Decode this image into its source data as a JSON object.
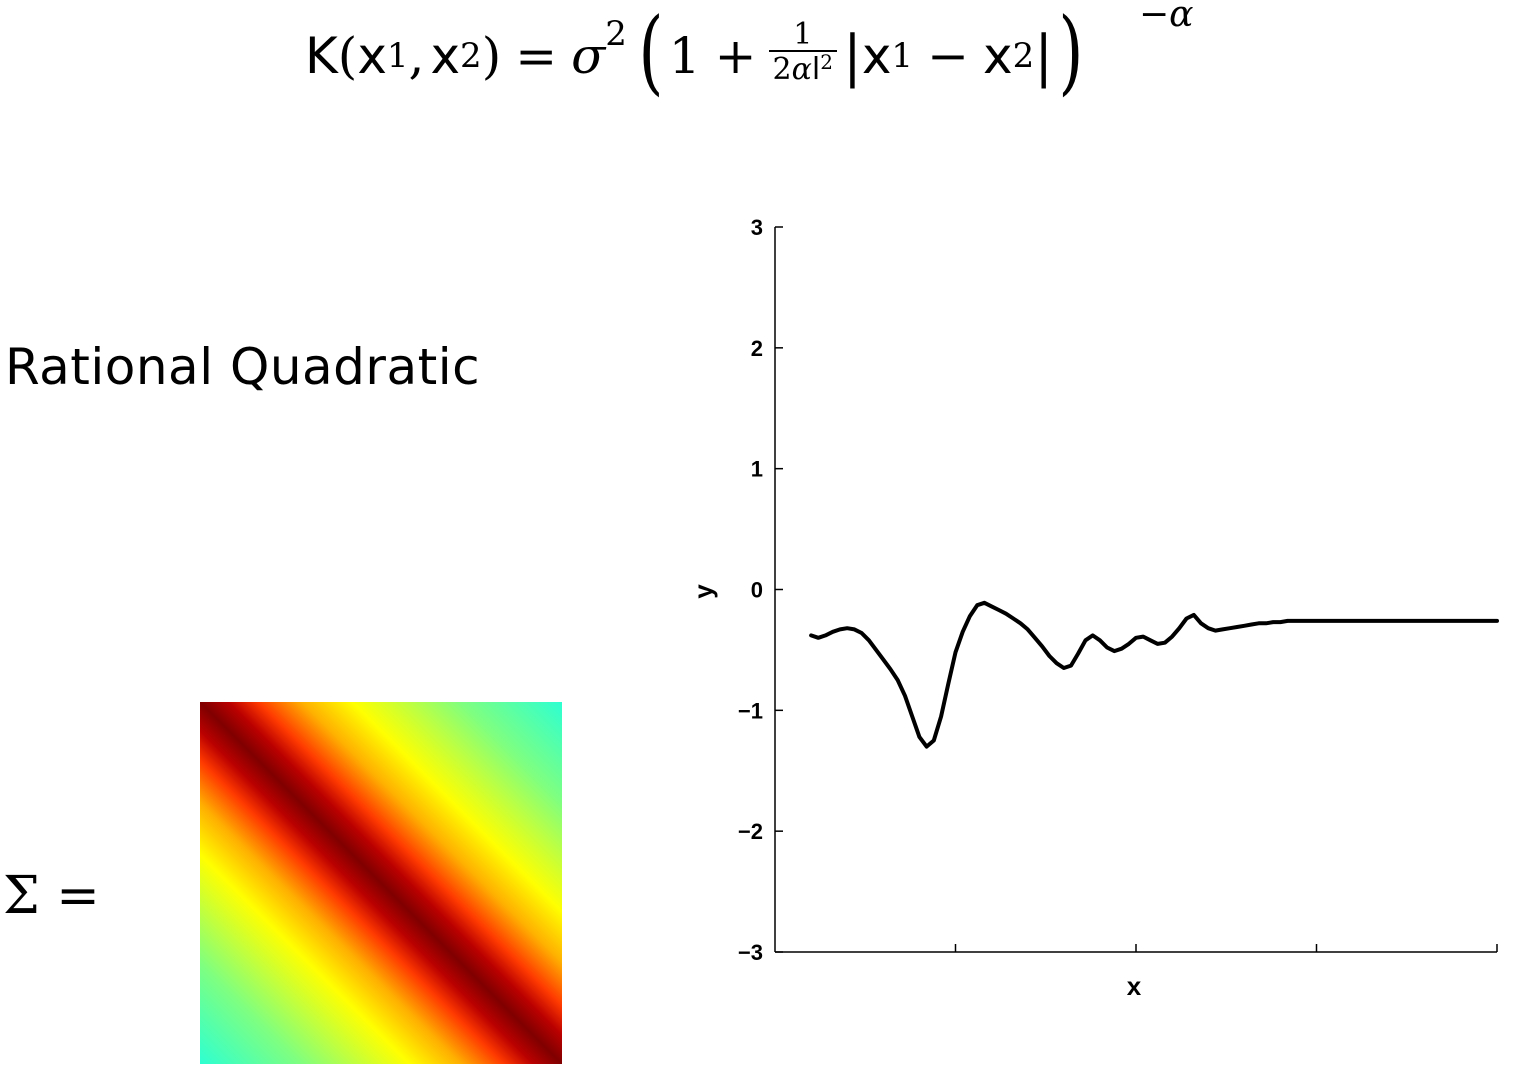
{
  "formula": {
    "lhs_fn": "K",
    "var": "x",
    "sub1": "1",
    "sub2": "2",
    "comma": ",",
    "equals": "=",
    "sigma": "σ",
    "sigma_exp": "2",
    "one": "1",
    "plus": "+",
    "frac_num": "1",
    "frac_den_coef": "2",
    "frac_den_alpha": "α",
    "frac_den_l": "l",
    "frac_den_exp": "2",
    "minus": "−",
    "exponent": "−α"
  },
  "kernel_name": "Rational Quadratic",
  "sigma_label": "Σ =",
  "chart_data": {
    "type": "line",
    "xlabel": "x",
    "ylabel": "y",
    "ylim": [
      -3,
      3
    ],
    "xlim": [
      0,
      1
    ],
    "yticks": [
      "−3",
      "−2",
      "−1",
      "0",
      "1",
      "2",
      "3"
    ],
    "ytick_values": [
      -3,
      -2,
      -1,
      0,
      1,
      2,
      3
    ],
    "xticks": [
      0.25,
      0.5,
      0.75,
      1.0
    ],
    "xtick_labels": [],
    "grid": false,
    "series": [
      {
        "color": "#000000",
        "x": [
          0.05,
          0.06,
          0.07,
          0.08,
          0.09,
          0.1,
          0.11,
          0.12,
          0.13,
          0.14,
          0.15,
          0.16,
          0.17,
          0.18,
          0.19,
          0.2,
          0.21,
          0.22,
          0.23,
          0.24,
          0.25,
          0.26,
          0.27,
          0.28,
          0.29,
          0.3,
          0.31,
          0.32,
          0.33,
          0.34,
          0.35,
          0.36,
          0.37,
          0.38,
          0.39,
          0.4,
          0.41,
          0.42,
          0.43,
          0.44,
          0.45,
          0.46,
          0.47,
          0.48,
          0.49,
          0.5,
          0.51,
          0.52,
          0.53,
          0.54,
          0.55,
          0.56,
          0.57,
          0.58,
          0.59,
          0.6,
          0.61,
          0.62,
          0.63,
          0.64,
          0.65,
          0.66,
          0.67,
          0.68,
          0.69,
          0.7,
          0.71,
          0.72,
          0.73,
          0.74,
          0.75,
          0.76,
          0.77,
          0.78,
          0.79,
          0.8,
          0.81,
          0.82,
          0.83,
          0.84,
          0.85,
          0.86,
          0.87,
          0.88,
          0.89,
          0.9,
          0.91,
          0.92,
          0.93,
          0.94,
          0.95,
          0.96,
          0.97,
          0.98,
          0.99,
          1.0
        ],
        "y": [
          -0.38,
          -0.4,
          -0.38,
          -0.35,
          -0.33,
          -0.32,
          -0.33,
          -0.36,
          -0.42,
          -0.5,
          -0.58,
          -0.66,
          -0.75,
          -0.88,
          -1.05,
          -1.22,
          -1.3,
          -1.25,
          -1.05,
          -0.78,
          -0.52,
          -0.35,
          -0.22,
          -0.13,
          -0.11,
          -0.14,
          -0.17,
          -0.2,
          -0.24,
          -0.28,
          -0.33,
          -0.4,
          -0.47,
          -0.55,
          -0.61,
          -0.65,
          -0.63,
          -0.53,
          -0.42,
          -0.38,
          -0.42,
          -0.48,
          -0.51,
          -0.49,
          -0.45,
          -0.4,
          -0.39,
          -0.42,
          -0.45,
          -0.44,
          -0.39,
          -0.32,
          -0.24,
          -0.21,
          -0.28,
          -0.32,
          -0.34,
          -0.33,
          -0.32,
          -0.31,
          -0.3,
          -0.29,
          -0.28,
          -0.28,
          -0.27,
          -0.27,
          -0.26,
          -0.26,
          -0.26,
          -0.26,
          -0.26,
          -0.26,
          -0.26,
          -0.26,
          -0.26,
          -0.26,
          -0.26,
          -0.26,
          -0.26,
          -0.26,
          -0.26,
          -0.26,
          -0.26,
          -0.26,
          -0.26,
          -0.26,
          -0.26,
          -0.26,
          -0.26,
          -0.26,
          -0.26,
          -0.26,
          -0.26,
          -0.26,
          -0.26,
          -0.26
        ]
      }
    ]
  }
}
